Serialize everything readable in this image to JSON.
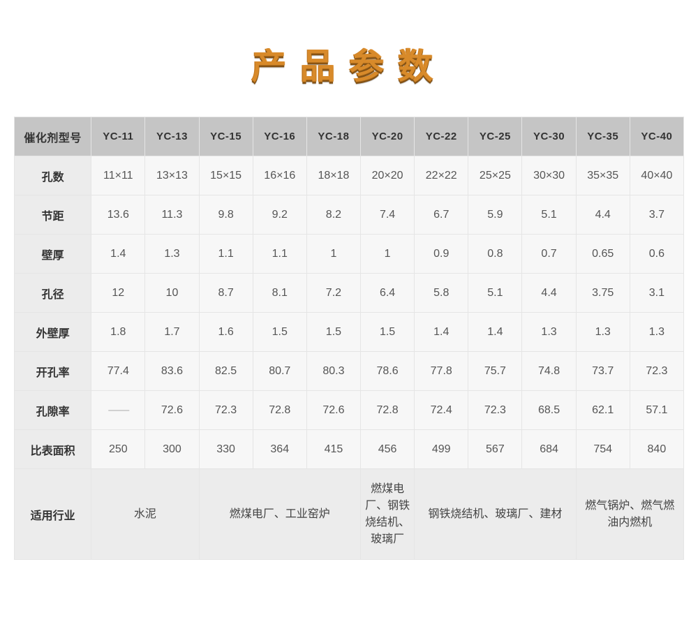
{
  "title": "产品参数",
  "table": {
    "header_label": "催化剂型号",
    "columns": [
      "YC-11",
      "YC-13",
      "YC-15",
      "YC-16",
      "YC-18",
      "YC-20",
      "YC-22",
      "YC-25",
      "YC-30",
      "YC-35",
      "YC-40"
    ],
    "rows": [
      {
        "label": "孔数",
        "cells": [
          "11×11",
          "13×13",
          "15×15",
          "16×16",
          "18×18",
          "20×20",
          "22×22",
          "25×25",
          "30×30",
          "35×35",
          "40×40"
        ]
      },
      {
        "label": "节距",
        "cells": [
          "13.6",
          "11.3",
          "9.8",
          "9.2",
          "8.2",
          "7.4",
          "6.7",
          "5.9",
          "5.1",
          "4.4",
          "3.7"
        ]
      },
      {
        "label": "壁厚",
        "cells": [
          "1.4",
          "1.3",
          "1.1",
          "1.1",
          "1",
          "1",
          "0.9",
          "0.8",
          "0.7",
          "0.65",
          "0.6"
        ]
      },
      {
        "label": "孔径",
        "cells": [
          "12",
          "10",
          "8.7",
          "8.1",
          "7.2",
          "6.4",
          "5.8",
          "5.1",
          "4.4",
          "3.75",
          "3.1"
        ]
      },
      {
        "label": "外壁厚",
        "cells": [
          "1.8",
          "1.7",
          "1.6",
          "1.5",
          "1.5",
          "1.5",
          "1.4",
          "1.4",
          "1.3",
          "1.3",
          "1.3"
        ]
      },
      {
        "label": "开孔率",
        "cells": [
          "77.4",
          "83.6",
          "82.5",
          "80.7",
          "80.3",
          "78.6",
          "77.8",
          "75.7",
          "74.8",
          "73.7",
          "72.3"
        ]
      },
      {
        "label": "孔隙率",
        "cells": [
          "——",
          "72.6",
          "72.3",
          "72.8",
          "72.6",
          "72.8",
          "72.4",
          "72.3",
          "68.5",
          "62.1",
          "57.1"
        ]
      },
      {
        "label": "比表面积",
        "cells": [
          "250",
          "300",
          "330",
          "364",
          "415",
          "456",
          "499",
          "567",
          "684",
          "754",
          "840"
        ]
      }
    ],
    "industry": {
      "label": "适用行业",
      "groups": [
        {
          "span": 2,
          "text": "水泥"
        },
        {
          "span": 3,
          "text": "燃煤电厂、工业窑炉"
        },
        {
          "span": 1,
          "text": "燃煤电厂、钢铁烧结机、玻璃厂"
        },
        {
          "span": 3,
          "text": "钢铁烧结机、玻璃厂、建材"
        },
        {
          "span": 2,
          "text": "燃气锅炉、燃气燃油内燃机"
        }
      ]
    },
    "colors": {
      "header_bg": "#c5c5c5",
      "rowhead_bg": "#ececec",
      "cell_bg": "#f7f7f7",
      "border": "#e5e5e5",
      "title_color": "#d88a2a"
    }
  }
}
